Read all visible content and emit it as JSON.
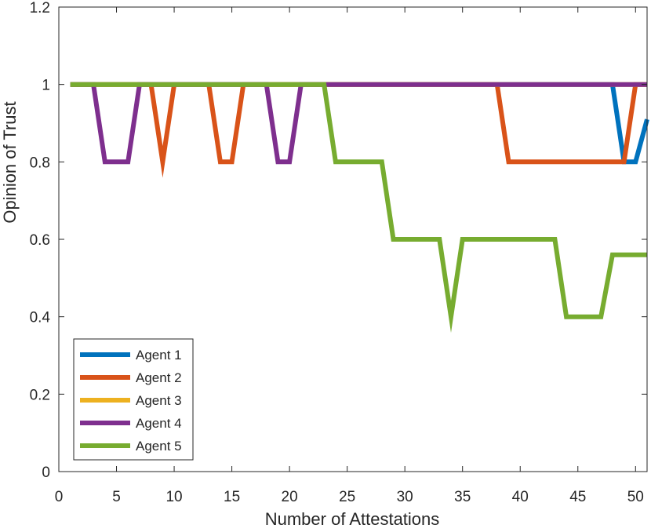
{
  "chart_data": {
    "type": "line",
    "title": "",
    "xlabel": "Number of Attestations",
    "ylabel": "Opinion of Trust",
    "xlim": [
      0,
      51
    ],
    "ylim": [
      0,
      1.2
    ],
    "x_ticks": [
      0,
      5,
      10,
      15,
      20,
      25,
      30,
      35,
      40,
      45,
      50
    ],
    "y_ticks": [
      0,
      0.2,
      0.4,
      0.6,
      0.8,
      1,
      1.2
    ],
    "grid": false,
    "legend_position": "bottom-left",
    "series": [
      {
        "name": "Agent 1",
        "color": "#0072BD",
        "points": [
          [
            1,
            1
          ],
          [
            48,
            1
          ],
          [
            49,
            0.8
          ],
          [
            50,
            0.8
          ],
          [
            51,
            0.91
          ]
        ]
      },
      {
        "name": "Agent 2",
        "color": "#D95319",
        "points": [
          [
            1,
            1
          ],
          [
            8,
            1
          ],
          [
            9,
            0.8
          ],
          [
            10,
            1
          ],
          [
            13,
            1
          ],
          [
            14,
            0.8
          ],
          [
            15,
            0.8
          ],
          [
            16,
            1
          ],
          [
            38,
            1
          ],
          [
            39,
            0.8
          ],
          [
            49,
            0.8
          ],
          [
            50,
            1
          ],
          [
            51,
            1
          ]
        ]
      },
      {
        "name": "Agent 3",
        "color": "#EDB120",
        "points": [
          [
            1,
            1
          ],
          [
            51,
            1
          ]
        ]
      },
      {
        "name": "Agent 4",
        "color": "#7E2F8E",
        "points": [
          [
            1,
            1
          ],
          [
            3,
            1
          ],
          [
            4,
            0.8
          ],
          [
            6,
            0.8
          ],
          [
            7,
            1
          ],
          [
            18,
            1
          ],
          [
            19,
            0.8
          ],
          [
            20,
            0.8
          ],
          [
            21,
            1
          ],
          [
            51,
            1
          ]
        ]
      },
      {
        "name": "Agent 5",
        "color": "#77AC30",
        "points": [
          [
            1,
            1
          ],
          [
            23,
            1
          ],
          [
            24,
            0.8
          ],
          [
            28,
            0.8
          ],
          [
            29,
            0.6
          ],
          [
            33,
            0.6
          ],
          [
            34,
            0.4
          ],
          [
            35,
            0.6
          ],
          [
            43,
            0.6
          ],
          [
            44,
            0.4
          ],
          [
            47,
            0.4
          ],
          [
            48,
            0.56
          ],
          [
            51,
            0.56
          ]
        ]
      }
    ]
  }
}
